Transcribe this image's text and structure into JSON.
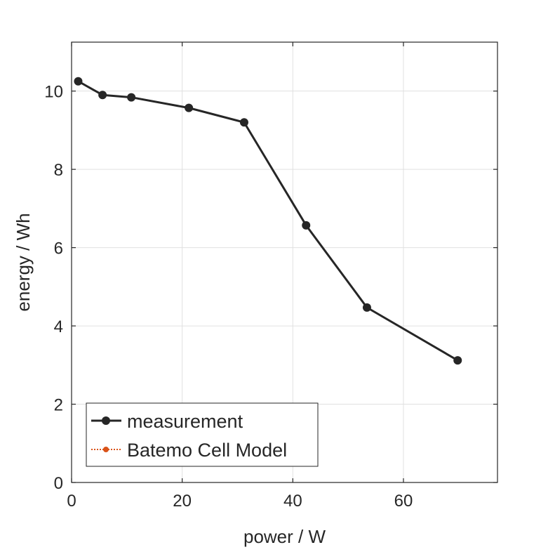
{
  "chart_data": {
    "type": "line",
    "xlabel": "power / W",
    "ylabel": "energy / Wh",
    "xlim": [
      0,
      77
    ],
    "ylim": [
      0,
      11.25
    ],
    "xticks": [
      0,
      20,
      40,
      60
    ],
    "yticks": [
      0,
      2,
      4,
      6,
      8,
      10
    ],
    "grid": true,
    "legend_position": "bottom-left",
    "series": [
      {
        "name": "measurement",
        "color": "#262626",
        "line_style": "solid",
        "marker": "circle",
        "x": [
          1.2,
          5.6,
          10.8,
          21.2,
          31.2,
          42.4,
          53.4,
          69.8
        ],
        "y": [
          10.25,
          9.9,
          9.84,
          9.57,
          9.2,
          6.57,
          4.47,
          3.12
        ]
      },
      {
        "name": "Batemo Cell Model",
        "color": "#d95319",
        "line_style": "dotted",
        "marker": "circle",
        "x": [],
        "y": []
      }
    ]
  }
}
